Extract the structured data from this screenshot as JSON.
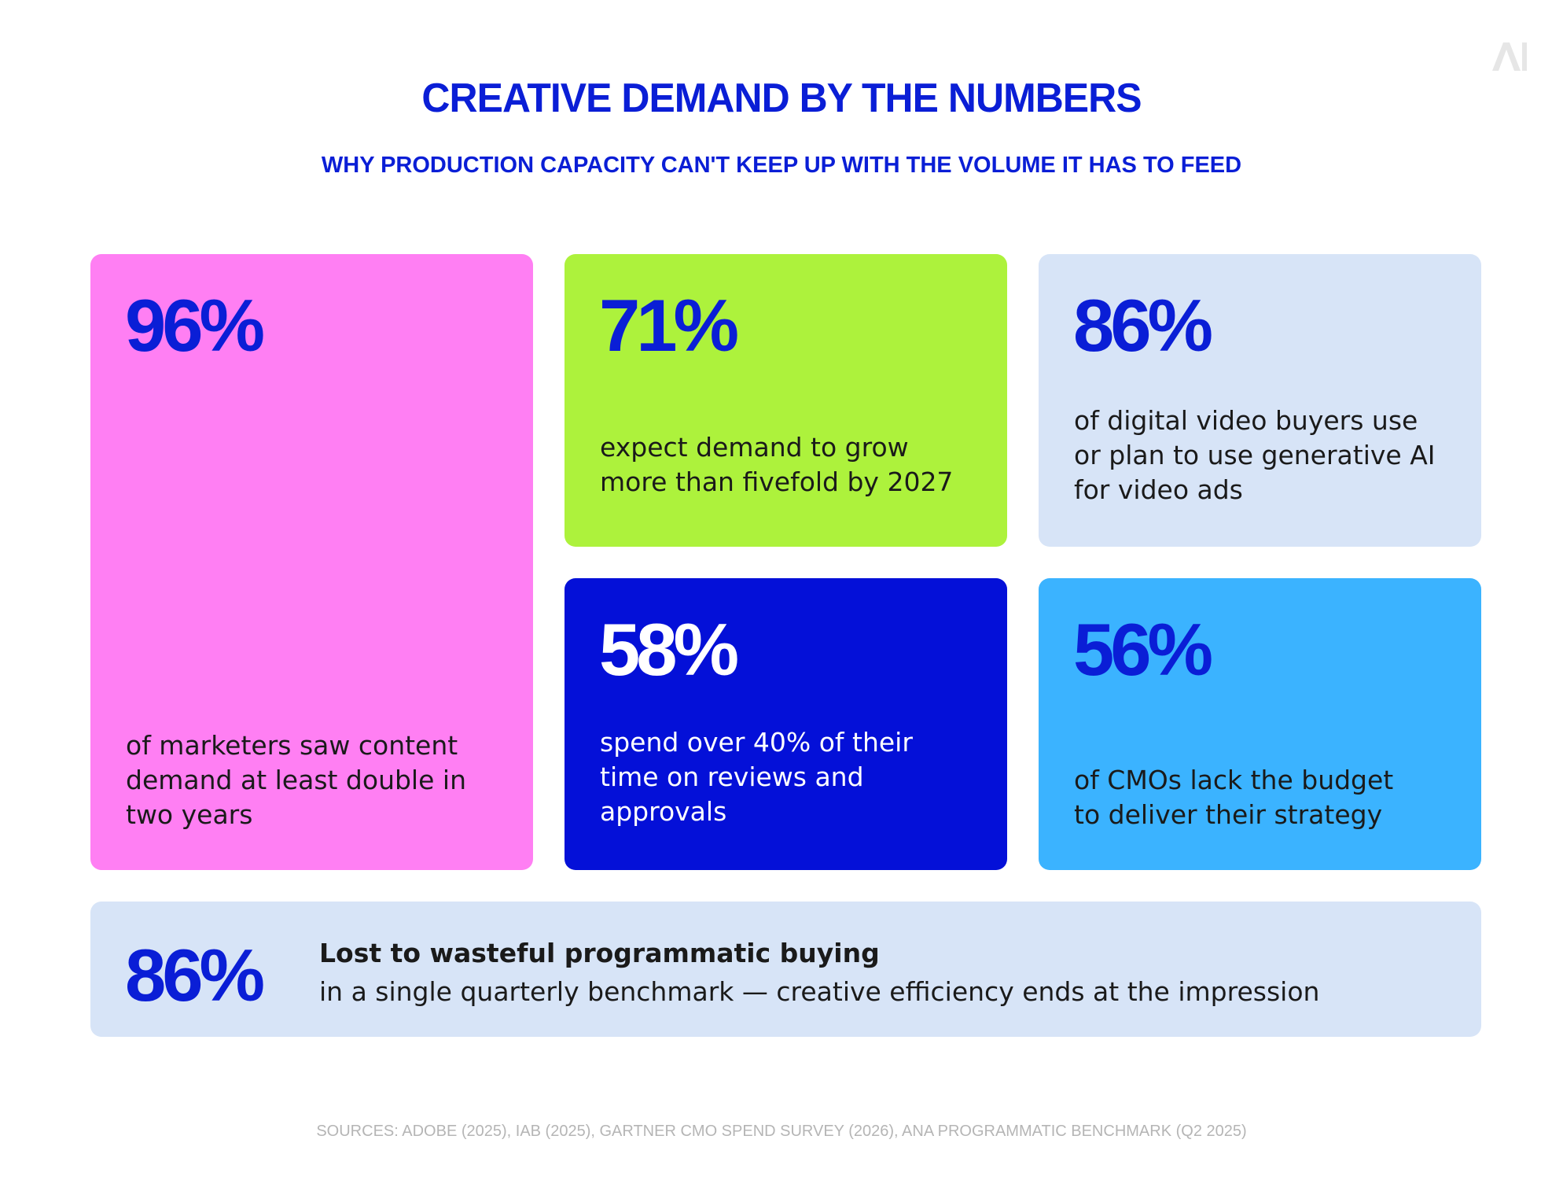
{
  "logo": {
    "text": "AI"
  },
  "header": {
    "title": "CREATIVE DEMAND BY THE NUMBERS",
    "subtitle": "WHY PRODUCTION CAPACITY CAN'T KEEP UP WITH THE VOLUME IT HAS TO FEED"
  },
  "cards": [
    {
      "stat": "96%",
      "desc": "of marketers saw content\ndemand at least double in\ntwo years",
      "color": "#ff7ff3"
    },
    {
      "stat": "71%",
      "desc": "expect demand to grow\nmore than fivefold by 2027",
      "color": "#adf23c"
    },
    {
      "stat": "86%",
      "desc": "of digital video buyers use\nor plan to use generative AI\nfor video ads",
      "color": "#d7e4f7"
    },
    {
      "stat": "58%",
      "desc": "spend over 40% of their\ntime on reviews and\napprovals",
      "color": "#0410d8"
    },
    {
      "stat": "56%",
      "desc": "of CMOs lack the budget\nto deliver their strategy",
      "color": "#3bb3ff"
    }
  ],
  "banner": {
    "stat": "86%",
    "headline": "Lost to wasteful programmatic buying",
    "sub": "in a single quarterly benchmark — creative efficiency ends at the impression",
    "color": "#d7e4f7"
  },
  "footer": {
    "sources": "SOURCES: ADOBE (2025), IAB (2025), GARTNER CMO SPEND SURVEY (2026), ANA PROGRAMMATIC BENCHMARK (Q2 2025)"
  },
  "colors": {
    "accent_blue": "#0a1ed6",
    "text_dark": "#1a1a1a",
    "muted": "#b5b5b5"
  }
}
